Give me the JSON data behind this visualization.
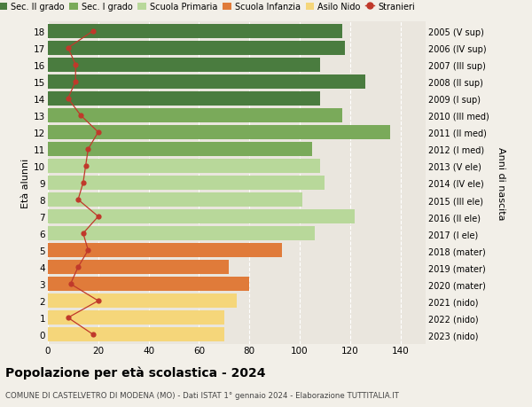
{
  "ages": [
    18,
    17,
    16,
    15,
    14,
    13,
    12,
    11,
    10,
    9,
    8,
    7,
    6,
    5,
    4,
    3,
    2,
    1,
    0
  ],
  "anni": [
    "2005 (V sup)",
    "2006 (IV sup)",
    "2007 (III sup)",
    "2008 (II sup)",
    "2009 (I sup)",
    "2010 (III med)",
    "2011 (II med)",
    "2012 (I med)",
    "2013 (V ele)",
    "2014 (IV ele)",
    "2015 (III ele)",
    "2016 (II ele)",
    "2017 (I ele)",
    "2018 (mater)",
    "2019 (mater)",
    "2020 (mater)",
    "2021 (nido)",
    "2022 (nido)",
    "2023 (nido)"
  ],
  "values": [
    117,
    118,
    108,
    126,
    108,
    117,
    136,
    105,
    108,
    110,
    101,
    122,
    106,
    93,
    72,
    80,
    75,
    70,
    70
  ],
  "colors": [
    "#4a7c3f",
    "#4a7c3f",
    "#4a7c3f",
    "#4a7c3f",
    "#4a7c3f",
    "#7aaa5a",
    "#7aaa5a",
    "#7aaa5a",
    "#b8d89a",
    "#b8d89a",
    "#b8d89a",
    "#b8d89a",
    "#b8d89a",
    "#e07b3a",
    "#e07b3a",
    "#e07b3a",
    "#f5d67a",
    "#f5d67a",
    "#f5d67a"
  ],
  "stranieri": [
    18,
    8,
    11,
    11,
    8,
    13,
    20,
    16,
    15,
    14,
    12,
    20,
    14,
    16,
    12,
    9,
    20,
    8,
    18
  ],
  "legend_labels": [
    "Sec. II grado",
    "Sec. I grado",
    "Scuola Primaria",
    "Scuola Infanzia",
    "Asilo Nido",
    "Stranieri"
  ],
  "legend_colors": [
    "#4a7c3f",
    "#7aaa5a",
    "#b8d89a",
    "#e07b3a",
    "#f5d67a",
    "#c0392b"
  ],
  "title": "Popolazione per età scolastica - 2024",
  "subtitle": "COMUNE DI CASTELVETRO DI MODENA (MO) - Dati ISTAT 1° gennaio 2024 - Elaborazione TUTTITALIA.IT",
  "ylabel_left": "Età alunni",
  "ylabel_right": "Anni di nascita",
  "xlim": [
    0,
    150
  ],
  "xticks": [
    0,
    20,
    40,
    60,
    80,
    100,
    120,
    140
  ],
  "bg_color": "#f2efe8",
  "bar_bg_color": "#eae6de"
}
